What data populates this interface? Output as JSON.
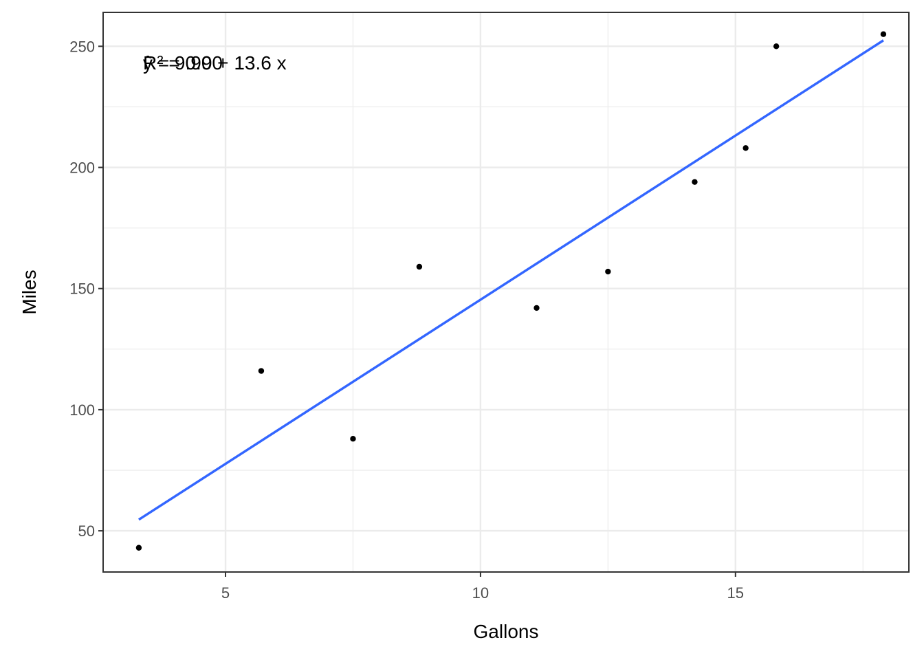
{
  "chart_data": {
    "type": "scatter",
    "xlabel": "Gallons",
    "ylabel": "Miles",
    "xlim": [
      2.6,
      18.4
    ],
    "ylim": [
      33,
      264
    ],
    "x_ticks": [
      5,
      10,
      15
    ],
    "x_tick_labels": [
      "5",
      "10",
      "15"
    ],
    "y_ticks": [
      50,
      100,
      150,
      200,
      250
    ],
    "y_tick_labels": [
      "50",
      "100",
      "150",
      "200",
      "250"
    ],
    "grid": true,
    "points": [
      {
        "x": 3.3,
        "y": 43
      },
      {
        "x": 5.7,
        "y": 116
      },
      {
        "x": 7.5,
        "y": 88
      },
      {
        "x": 8.8,
        "y": 159
      },
      {
        "x": 11.1,
        "y": 142
      },
      {
        "x": 12.5,
        "y": 157
      },
      {
        "x": 14.2,
        "y": 194
      },
      {
        "x": 15.2,
        "y": 208
      },
      {
        "x": 15.8,
        "y": 250
      },
      {
        "x": 17.9,
        "y": 255
      }
    ],
    "fit_line": {
      "intercept": 9.9,
      "slope": 13.55,
      "x_range": [
        3.3,
        17.9
      ]
    },
    "annotations": {
      "equation": "ŷ = 9.90 + 13.6 x",
      "r_squared": "R² = 0.90"
    },
    "colors": {
      "points": "#000000",
      "fit_line": "#3366ff",
      "grid": "#ebebeb",
      "border": "#333333"
    }
  }
}
